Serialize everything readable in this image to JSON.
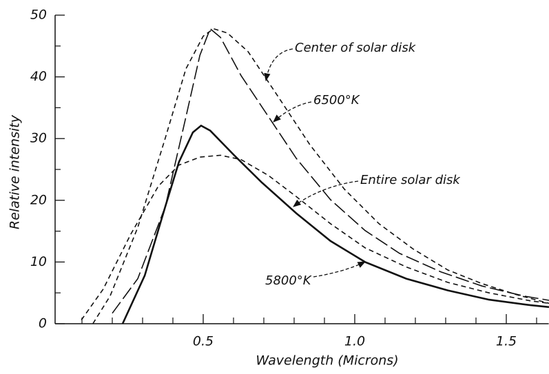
{
  "chart_data": {
    "type": "line",
    "xlabel": "Wavelength (Microns)",
    "ylabel": "Relative intensity",
    "xlim": [
      0,
      1.64
    ],
    "ylim": [
      0,
      50
    ],
    "xticks": [
      0.5,
      {
        "value": 1,
        "label": "1.0"
      },
      1.5
    ],
    "xminorticks": [
      0.1,
      0.2,
      0.3,
      0.4,
      0.6,
      0.7,
      0.8,
      0.9,
      1.1,
      1.2,
      1.3,
      1.4,
      1.6
    ],
    "yticks": [
      0,
      10,
      20,
      30,
      40,
      50
    ],
    "yminorticks": [
      5,
      15,
      25,
      35,
      45
    ],
    "series": [
      {
        "name": "6500°K",
        "color": "#111111",
        "style": "short-dash",
        "x": [
          0.136,
          0.193,
          0.284,
          0.375,
          0.443,
          0.5,
          0.534,
          0.58,
          0.648,
          0.739,
          0.852,
          0.966,
          1.08,
          1.193,
          1.307,
          1.42,
          1.534,
          1.641
        ],
        "values": [
          0,
          4.5,
          15.6,
          30.1,
          41.3,
          46.6,
          47.8,
          47.1,
          44.1,
          37.4,
          29.0,
          21.8,
          16.2,
          12.1,
          8.7,
          6.5,
          4.7,
          3.3
        ]
      },
      {
        "name": "Center of solar disk",
        "color": "#111111",
        "style": "long-dash",
        "x": [
          0.2,
          0.284,
          0.375,
          0.443,
          0.489,
          0.523,
          0.557,
          0.625,
          0.716,
          0.807,
          0.92,
          1.034,
          1.148,
          1.284,
          1.42,
          1.557,
          1.641
        ],
        "values": [
          1.7,
          7.3,
          19,
          33.5,
          43.5,
          47.8,
          46.4,
          40.2,
          33.5,
          26.8,
          20.1,
          15.1,
          11.4,
          8.4,
          6.1,
          4.5,
          3.8
        ]
      },
      {
        "name": "Entire solar disk",
        "color": "#111111",
        "style": "solid",
        "x": [
          0.234,
          0.307,
          0.375,
          0.42,
          0.466,
          0.493,
          0.523,
          0.602,
          0.693,
          0.807,
          0.92,
          1.034,
          1.17,
          1.307,
          1.443,
          1.58,
          1.641
        ],
        "values": [
          0,
          7.8,
          19.0,
          26.2,
          31.0,
          32.1,
          31.3,
          27.3,
          22.9,
          17.9,
          13.4,
          10.0,
          7.3,
          5.4,
          3.9,
          3.0,
          2.7
        ]
      },
      {
        "name": "5800°K",
        "color": "#111111",
        "style": "short-dash",
        "x": [
          0.098,
          0.17,
          0.261,
          0.352,
          0.42,
          0.489,
          0.557,
          0.625,
          0.716,
          0.807,
          0.92,
          1.034,
          1.17,
          1.307,
          1.443,
          1.58,
          1.641
        ],
        "values": [
          0.6,
          5.6,
          14.5,
          22.3,
          25.7,
          27.0,
          27.3,
          26.6,
          24.0,
          20.6,
          16.2,
          12.3,
          9.2,
          6.7,
          5.0,
          3.7,
          3.3
        ]
      }
    ]
  }
}
